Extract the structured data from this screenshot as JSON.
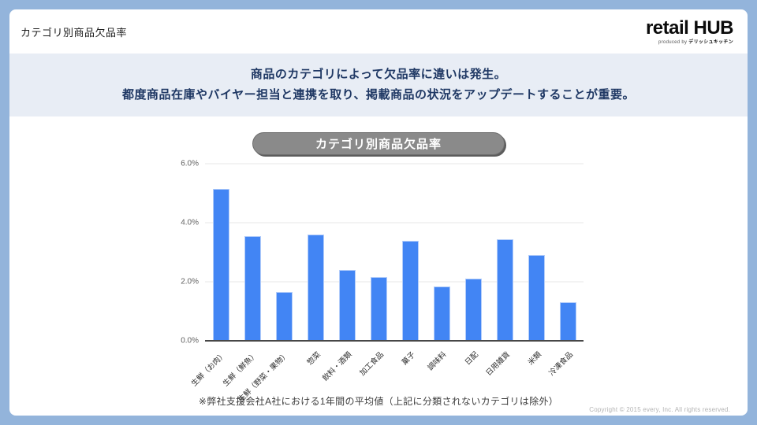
{
  "header": {
    "title": "カテゴリ別商品欠品率",
    "logo": {
      "brand_word1": "retail",
      "brand_word2": "HUB",
      "tagline_prefix": "produced by",
      "tagline_brand": "デリッシュキッチン"
    }
  },
  "banner": {
    "line1": "商品のカテゴリによって欠品率に違いは発生。",
    "line2": "都度商品在庫やバイヤー担当と連携を取り、掲載商品の状況をアップデートすることが重要。"
  },
  "chart": {
    "pill_title": "カテゴリ別商品欠品率",
    "footnote": "※弊社支援会社A社における1年間の平均値（上記に分類されないカテゴリは除外）"
  },
  "chart_data": {
    "type": "bar",
    "title": "カテゴリ別商品欠品率",
    "categories": [
      "生鮮（お肉）",
      "生鮮（鮮魚）",
      "生鮮（野菜・果物）",
      "惣菜",
      "飲料・酒類",
      "加工食品",
      "菓子",
      "調味料",
      "日配",
      "日用雑貨",
      "米類",
      "冷凍食品"
    ],
    "values": [
      5.15,
      3.55,
      1.65,
      3.6,
      2.4,
      2.15,
      3.4,
      1.85,
      2.1,
      3.45,
      2.9,
      1.3
    ],
    "unit": "%",
    "xlabel": "",
    "ylabel": "",
    "ylim": [
      0,
      6
    ],
    "yticks": [
      "0.0%",
      "2.0%",
      "4.0%",
      "6.0%"
    ],
    "grid": true,
    "legend": false,
    "bar_color": "#4285f4"
  },
  "footer": {
    "copyright": "Copyright © 2015 every, Inc. All rights reserved."
  },
  "colors": {
    "frame": "#93b4db",
    "banner_bg": "#e8edf5",
    "banner_text": "#1f3864",
    "pill_bg": "#8a8a8a",
    "bar": "#4285f4"
  }
}
